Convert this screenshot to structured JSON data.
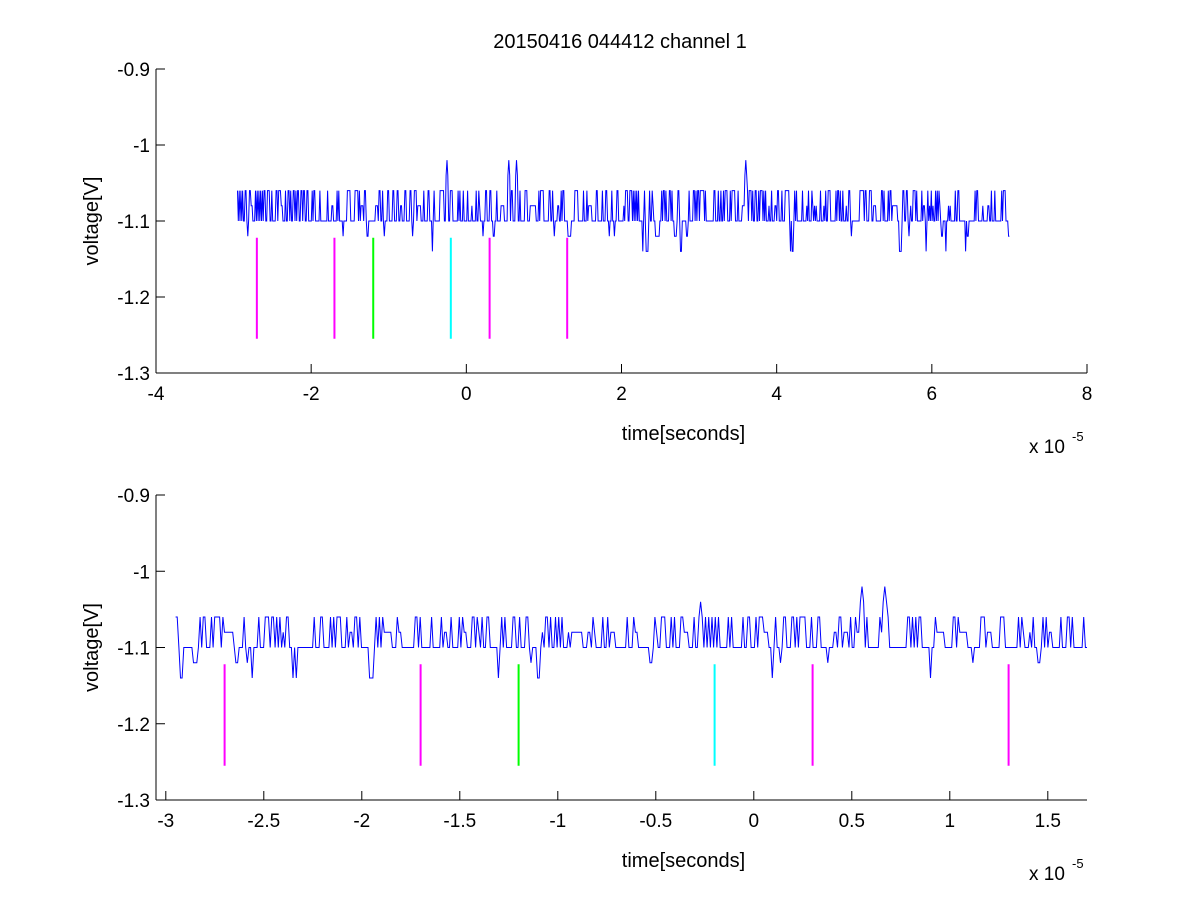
{
  "figure": {
    "title": "20150416 044412 channel 1"
  },
  "colors": {
    "signal": "#0000ff",
    "marker_magenta": "#ff00ff",
    "marker_green": "#00ff00",
    "marker_cyan": "#00ffff",
    "axes": "#000000"
  },
  "chart_data": [
    {
      "type": "line",
      "title": "20150416 044412 channel 1",
      "xlabel": "time[seconds]",
      "ylabel": "voltage[V]",
      "x_multiplier": "x 10",
      "x_multiplier_exponent": "-5",
      "xlim": [
        -4,
        8
      ],
      "ylim": [
        -1.3,
        -0.9
      ],
      "x_ticks": [
        "-4",
        "-2",
        "0",
        "2",
        "4",
        "6",
        "8"
      ],
      "y_ticks": [
        "-1.3",
        "-1.2",
        "-1.1",
        "-1",
        "-0.9"
      ],
      "grid": false,
      "series": [
        {
          "kind": "quantized-noise",
          "x_range": [
            -2.95,
            7.0
          ],
          "levels": [
            -1.14,
            -1.12,
            -1.1,
            -1.08,
            -1.06,
            -1.04,
            -1.02
          ],
          "baseline": -1.1,
          "spike_peaks": [
            {
              "x": -0.25,
              "y": -1.02
            },
            {
              "x": 0.55,
              "y": -1.02
            },
            {
              "x": 0.65,
              "y": -1.02
            },
            {
              "x": 3.6,
              "y": -1.02
            }
          ]
        }
      ],
      "markers": [
        {
          "x": -2.7,
          "y": [
            -1.255,
            -1.122
          ],
          "color": "magenta"
        },
        {
          "x": -1.7,
          "y": [
            -1.255,
            -1.122
          ],
          "color": "magenta"
        },
        {
          "x": -1.2,
          "y": [
            -1.255,
            -1.122
          ],
          "color": "green"
        },
        {
          "x": -0.2,
          "y": [
            -1.255,
            -1.122
          ],
          "color": "cyan"
        },
        {
          "x": 0.3,
          "y": [
            -1.255,
            -1.122
          ],
          "color": "magenta"
        },
        {
          "x": 1.3,
          "y": [
            -1.255,
            -1.122
          ],
          "color": "magenta"
        }
      ]
    },
    {
      "type": "line",
      "xlabel": "time[seconds]",
      "ylabel": "voltage[V]",
      "x_multiplier": "x 10",
      "x_multiplier_exponent": "-5",
      "xlim": [
        -3.05,
        1.7
      ],
      "ylim": [
        -1.3,
        -0.9
      ],
      "x_ticks": [
        "-3",
        "-2.5",
        "-2",
        "-1.5",
        "-1",
        "-0.5",
        "0",
        "0.5",
        "1",
        "1.5"
      ],
      "y_ticks": [
        "-1.3",
        "-1.2",
        "-1.1",
        "-1",
        "-0.9"
      ],
      "grid": false,
      "series": [
        {
          "kind": "quantized-noise",
          "x_range": [
            -2.95,
            1.7
          ],
          "levels": [
            -1.14,
            -1.12,
            -1.1,
            -1.08,
            -1.06,
            -1.04,
            -1.02
          ],
          "baseline": -1.1,
          "spike_peaks": [
            {
              "x": -0.27,
              "y": -1.04
            },
            {
              "x": 0.55,
              "y": -1.02
            },
            {
              "x": 0.67,
              "y": -1.02
            }
          ]
        }
      ],
      "markers": [
        {
          "x": -2.7,
          "y": [
            -1.255,
            -1.122
          ],
          "color": "magenta"
        },
        {
          "x": -1.7,
          "y": [
            -1.255,
            -1.122
          ],
          "color": "magenta"
        },
        {
          "x": -1.2,
          "y": [
            -1.255,
            -1.122
          ],
          "color": "green"
        },
        {
          "x": -0.2,
          "y": [
            -1.255,
            -1.122
          ],
          "color": "cyan"
        },
        {
          "x": 0.3,
          "y": [
            -1.255,
            -1.122
          ],
          "color": "magenta"
        },
        {
          "x": 1.3,
          "y": [
            -1.255,
            -1.122
          ],
          "color": "magenta"
        }
      ]
    }
  ]
}
